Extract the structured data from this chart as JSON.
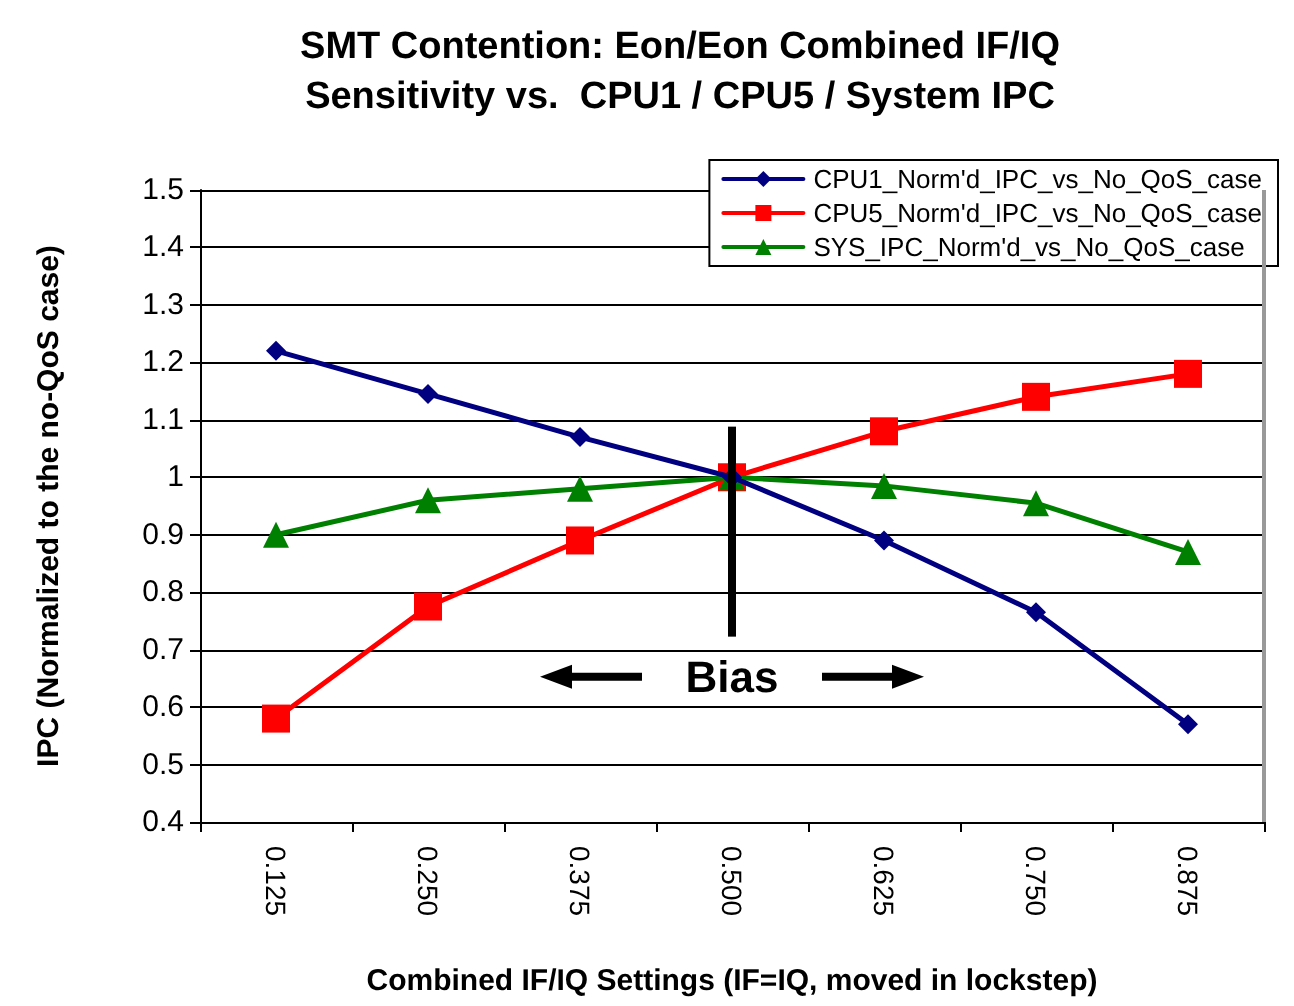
{
  "chart_data": {
    "type": "line",
    "title": "SMT Contention: Eon/Eon Combined IF/IQ\nSensitivity vs.  CPU1 / CPU5 / System IPC",
    "xlabel": "Combined IF/IQ Settings (IF=IQ, moved in lockstep)",
    "ylabel": "IPC (Normalized to the no-QoS case)",
    "categories": [
      "0.125",
      "0.250",
      "0.375",
      "0.500",
      "0.625",
      "0.750",
      "0.875"
    ],
    "series": [
      {
        "name": "CPU1_Norm'd_IPC_vs_No_QoS_case",
        "color": "#000080",
        "marker": "diamond",
        "values": [
          1.22,
          1.145,
          1.07,
          1.0,
          0.89,
          0.765,
          0.57
        ]
      },
      {
        "name": "CPU5_Norm'd_IPC_vs_No_QoS_case",
        "color": "#ff0000",
        "marker": "square",
        "values": [
          0.58,
          0.775,
          0.89,
          1.0,
          1.08,
          1.14,
          1.18
        ]
      },
      {
        "name": "SYS_IPC_Norm'd_vs_No_QoS_case",
        "color": "#008000",
        "marker": "triangle",
        "values": [
          0.9,
          0.96,
          0.98,
          1.0,
          0.985,
          0.955,
          0.87
        ]
      }
    ],
    "ylim": [
      0.4,
      1.5
    ],
    "yticks": [
      0.4,
      0.5,
      0.6,
      0.7,
      0.8,
      0.9,
      1,
      1.1,
      1.2,
      1.3,
      1.4,
      1.5
    ],
    "grid": "y",
    "legend": "top right",
    "annotations": [
      "Bias"
    ]
  }
}
